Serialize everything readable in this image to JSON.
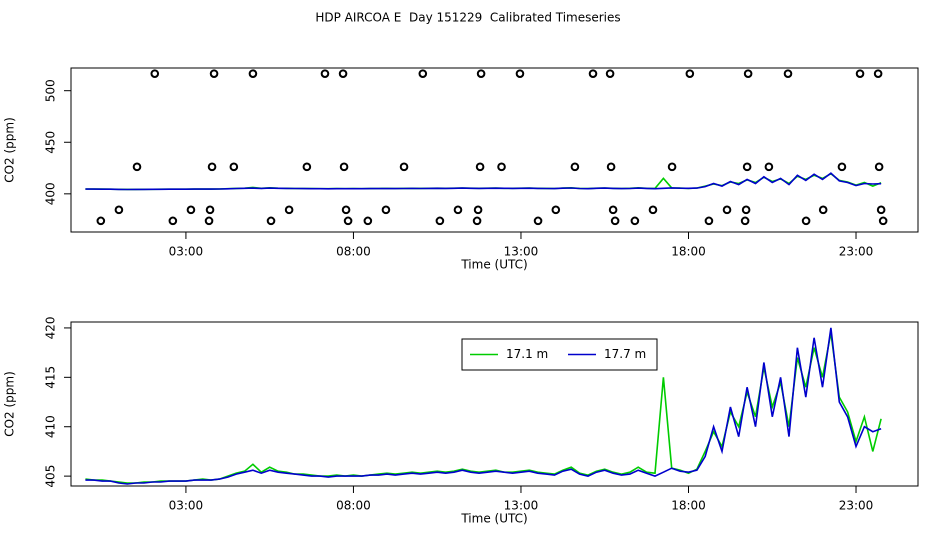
{
  "title": "HDP AIRCOA E  Day 151229  Calibrated Timeseries",
  "chart_data": [
    {
      "type": "scatter",
      "xlabel": "Time (UTC)",
      "ylabel": "CO2 (ppm)",
      "xlim": [
        -0.43,
        24.85
      ],
      "ylim": [
        363,
        522
      ],
      "xticks": [
        {
          "value": 3,
          "label": "03:00"
        },
        {
          "value": 8,
          "label": "08:00"
        },
        {
          "value": 13,
          "label": "13:00"
        },
        {
          "value": 18,
          "label": "18:00"
        },
        {
          "value": 23,
          "label": "23:00"
        }
      ],
      "yticks": [
        400,
        450,
        500
      ],
      "series": [
        {
          "color": "#000000",
          "x": [
            2.07,
            3.84,
            5.0,
            7.15,
            7.69,
            10.07,
            11.81,
            12.97,
            15.15,
            15.66,
            18.04,
            19.78,
            20.97,
            23.12,
            23.66,
            1.54,
            3.78,
            4.43,
            6.61,
            7.72,
            9.51,
            11.78,
            12.42,
            14.61,
            15.69,
            17.51,
            19.75,
            20.4,
            22.58,
            23.69,
            1.0,
            3.15,
            3.72,
            6.08,
            7.78,
            8.97,
            11.12,
            11.72,
            14.04,
            15.75,
            16.94,
            19.15,
            19.72,
            22.02,
            23.75,
            0.46,
            2.61,
            3.69,
            5.54,
            7.84,
            8.43,
            10.58,
            11.69,
            13.51,
            15.81,
            16.4,
            18.61,
            19.69,
            21.51,
            23.81
          ],
          "values": [
            516.5,
            516.5,
            516.5,
            516.5,
            516.5,
            516.5,
            516.5,
            516.5,
            516.5,
            516.5,
            516.5,
            516.5,
            516.5,
            516.5,
            516.5,
            426.2,
            426.2,
            426.2,
            426.2,
            426.2,
            426.2,
            426.2,
            426.2,
            426.2,
            426.2,
            426.2,
            426.2,
            426.2,
            426.2,
            426.2,
            384.5,
            384.5,
            384.5,
            384.5,
            384.5,
            384.5,
            384.5,
            384.5,
            384.5,
            384.5,
            384.5,
            384.5,
            384.5,
            384.5,
            384.5,
            373.8,
            373.8,
            373.8,
            373.8,
            373.8,
            373.8,
            373.8,
            373.8,
            373.8,
            373.8,
            373.8,
            373.8,
            373.8,
            373.8,
            373.8
          ]
        }
      ]
    },
    {
      "type": "line",
      "xlabel": "Time (UTC)",
      "ylabel": "CO2 (ppm)",
      "legend": "top",
      "xlim": [
        -0.43,
        24.85
      ],
      "ylim": [
        404,
        420.6
      ],
      "xticks": [
        {
          "value": 3,
          "label": "03:00"
        },
        {
          "value": 8,
          "label": "08:00"
        },
        {
          "value": 13,
          "label": "13:00"
        },
        {
          "value": 18,
          "label": "18:00"
        },
        {
          "value": 23,
          "label": "23:00"
        }
      ],
      "yticks": [
        405,
        410,
        415,
        420
      ],
      "x": [
        0,
        0.25,
        0.5,
        0.75,
        1,
        1.25,
        1.5,
        1.75,
        2,
        2.25,
        2.5,
        2.75,
        3,
        3.25,
        3.5,
        3.75,
        4,
        4.25,
        4.5,
        4.75,
        5,
        5.25,
        5.5,
        5.75,
        6,
        6.25,
        6.5,
        6.75,
        7,
        7.25,
        7.5,
        7.75,
        8,
        8.25,
        8.5,
        8.75,
        9,
        9.25,
        9.5,
        9.75,
        10,
        10.25,
        10.5,
        10.75,
        11,
        11.25,
        11.5,
        11.75,
        12,
        12.25,
        12.5,
        12.75,
        13,
        13.25,
        13.5,
        13.75,
        14,
        14.25,
        14.5,
        14.75,
        15,
        15.25,
        15.5,
        15.75,
        16,
        16.25,
        16.5,
        16.75,
        17,
        17.25,
        17.5,
        17.75,
        18,
        18.25,
        18.5,
        18.75,
        19,
        19.25,
        19.5,
        19.75,
        20,
        20.25,
        20.5,
        20.75,
        21,
        21.25,
        21.5,
        21.75,
        22,
        22.25,
        22.5,
        22.75,
        23,
        23.25,
        23.5,
        23.75
      ],
      "series": [
        {
          "name": "17.1 m",
          "color": "#00cc00",
          "values": [
            404.7,
            404.6,
            404.6,
            404.5,
            404.4,
            404.3,
            404.3,
            404.4,
            404.4,
            404.5,
            404.5,
            404.5,
            404.5,
            404.6,
            404.7,
            404.6,
            404.7,
            405.0,
            405.3,
            405.5,
            406.2,
            405.4,
            405.9,
            405.5,
            405.4,
            405.2,
            405.2,
            405.1,
            405.0,
            405.0,
            405.1,
            405.0,
            405.1,
            405.0,
            405.1,
            405.2,
            405.3,
            405.2,
            405.3,
            405.4,
            405.3,
            405.4,
            405.5,
            405.4,
            405.5,
            405.7,
            405.5,
            405.4,
            405.5,
            405.6,
            405.4,
            405.4,
            405.5,
            405.6,
            405.4,
            405.3,
            405.2,
            405.6,
            405.9,
            405.3,
            405.1,
            405.5,
            405.7,
            405.4,
            405.2,
            405.4,
            405.9,
            405.4,
            405.3,
            415.0,
            405.8,
            405.6,
            405.3,
            405.7,
            407.5,
            409.5,
            408.0,
            411.5,
            410.0,
            413.5,
            411.0,
            416.0,
            412.0,
            414.5,
            410.0,
            417.0,
            414.0,
            418.0,
            415.0,
            419.5,
            413.0,
            411.5,
            408.5,
            411.0,
            407.5,
            410.8
          ]
        },
        {
          "name": "17.7 m",
          "color": "#0000cc",
          "values": [
            404.6,
            404.6,
            404.5,
            404.5,
            404.3,
            404.2,
            404.3,
            404.3,
            404.4,
            404.4,
            404.5,
            404.5,
            404.5,
            404.6,
            404.6,
            404.6,
            404.7,
            404.9,
            405.2,
            405.4,
            405.6,
            405.3,
            405.6,
            405.4,
            405.3,
            405.2,
            405.1,
            405.0,
            405.0,
            404.9,
            405.0,
            405.0,
            405.0,
            405.0,
            405.1,
            405.1,
            405.2,
            405.1,
            405.2,
            405.3,
            405.2,
            405.3,
            405.4,
            405.3,
            405.4,
            405.6,
            405.4,
            405.3,
            405.4,
            405.5,
            405.4,
            405.3,
            405.4,
            405.5,
            405.3,
            405.2,
            405.1,
            405.5,
            405.7,
            405.2,
            405.0,
            405.4,
            405.6,
            405.3,
            405.1,
            405.2,
            405.6,
            405.3,
            405.0,
            405.4,
            405.8,
            405.5,
            405.4,
            405.6,
            407.0,
            410.0,
            407.5,
            412.0,
            409.0,
            414.0,
            410.0,
            416.5,
            411.0,
            415.0,
            409.0,
            418.0,
            413.0,
            419.0,
            414.0,
            420.0,
            412.5,
            411.0,
            408.0,
            410.0,
            409.5,
            409.8
          ]
        }
      ]
    }
  ]
}
